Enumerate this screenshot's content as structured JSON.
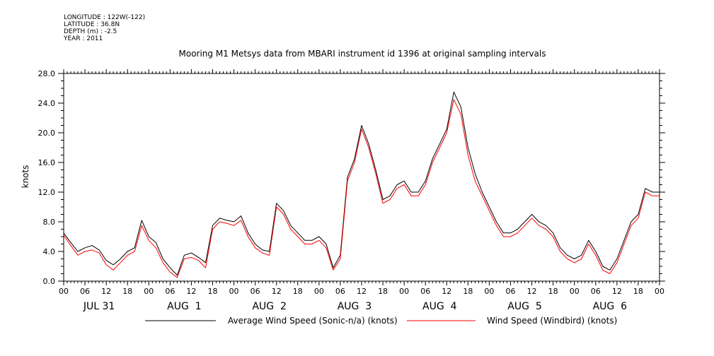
{
  "meta": {
    "longitude": "LONGITUDE : 122W(-122)",
    "latitude": "LATITUDE : 36.8N",
    "depth": "DEPTH (m) : -2.5",
    "year": "YEAR : 2011"
  },
  "chart_data": {
    "type": "line",
    "title": "Mooring M1 Metsys data from MBARI instrument id 1396 at original sampling intervals",
    "ylabel": "knots",
    "xlabel": "",
    "ylim": [
      0,
      28
    ],
    "yticks": [
      "0.0",
      "4.0",
      "8.0",
      "12.0",
      "16.0",
      "20.0",
      "24.0",
      "28.0"
    ],
    "xlim_hours": [
      0,
      168
    ],
    "hour_ticks": [
      "00",
      "06",
      "12",
      "18",
      "00",
      "06",
      "12",
      "18",
      "00",
      "06",
      "12",
      "18",
      "00",
      "06",
      "12",
      "18",
      "00",
      "06",
      "12",
      "18",
      "00",
      "06",
      "12",
      "18",
      "00",
      "06",
      "12",
      "18",
      "00"
    ],
    "day_labels": [
      "JUL 31",
      "AUG  1",
      "AUG  2",
      "AUG  3",
      "AUG  4",
      "AUG  5",
      "AUG  6"
    ],
    "grid": false,
    "legend_position": "bottom",
    "series": [
      {
        "name": "Average Wind Speed (Sonic-n/a) (knots)",
        "color": "#000000",
        "x": [
          0,
          2,
          4,
          6,
          8,
          10,
          12,
          14,
          16,
          18,
          20,
          22,
          24,
          26,
          28,
          30,
          32,
          34,
          36,
          38,
          40,
          42,
          44,
          46,
          48,
          50,
          52,
          54,
          56,
          58,
          60,
          62,
          64,
          66,
          68,
          70,
          72,
          74,
          76,
          78,
          80,
          82,
          84,
          86,
          88,
          90,
          92,
          94,
          96,
          98,
          100,
          102,
          104,
          106,
          108,
          110,
          112,
          114,
          116,
          118,
          120,
          122,
          124,
          126,
          128,
          130,
          132,
          134,
          136,
          138,
          140,
          142,
          144,
          146,
          148,
          150,
          152,
          154,
          156,
          158,
          160,
          162,
          164,
          166,
          168
        ],
        "y": [
          6.5,
          5.2,
          4.0,
          4.5,
          4.8,
          4.2,
          2.8,
          2.2,
          3.0,
          4.0,
          4.5,
          8.2,
          6.0,
          5.2,
          3.0,
          1.8,
          0.8,
          3.5,
          3.8,
          3.2,
          2.5,
          7.5,
          8.5,
          8.2,
          8.0,
          8.8,
          6.5,
          5.0,
          4.2,
          4.0,
          10.5,
          9.5,
          7.5,
          6.5,
          5.5,
          5.5,
          6.0,
          5.0,
          1.8,
          3.5,
          14.0,
          16.5,
          21.0,
          18.5,
          15.0,
          11.0,
          11.5,
          13.0,
          13.5,
          12.0,
          12.0,
          13.5,
          16.5,
          18.5,
          20.5,
          25.5,
          23.5,
          18.0,
          14.5,
          12.0,
          10.0,
          8.0,
          6.5,
          6.5,
          7.0,
          8.0,
          9.0,
          8.0,
          7.5,
          6.5,
          4.5,
          3.5,
          3.0,
          3.5,
          5.5,
          4.0,
          2.0,
          1.5,
          3.0,
          5.5,
          8.0,
          9.0,
          12.5,
          12.0,
          12.0
        ]
      },
      {
        "name": "Wind Speed (Windbird) (knots)",
        "color": "#ff0000",
        "x": [
          0,
          2,
          4,
          6,
          8,
          10,
          12,
          14,
          16,
          18,
          20,
          22,
          24,
          26,
          28,
          30,
          32,
          34,
          36,
          38,
          40,
          42,
          44,
          46,
          48,
          50,
          52,
          54,
          56,
          58,
          60,
          62,
          64,
          66,
          68,
          70,
          72,
          74,
          76,
          78,
          80,
          82,
          84,
          86,
          88,
          90,
          92,
          94,
          96,
          98,
          100,
          102,
          104,
          106,
          108,
          110,
          112,
          114,
          116,
          118,
          120,
          122,
          124,
          126,
          128,
          130,
          132,
          134,
          136,
          138,
          140,
          142,
          144,
          146,
          148,
          150,
          152,
          154,
          156,
          158,
          160,
          162,
          164,
          166,
          168
        ],
        "y": [
          6.2,
          4.8,
          3.5,
          4.0,
          4.2,
          3.8,
          2.2,
          1.5,
          2.5,
          3.5,
          4.0,
          7.5,
          5.5,
          4.5,
          2.5,
          1.2,
          0.5,
          3.0,
          3.2,
          2.8,
          1.8,
          7.0,
          8.0,
          7.8,
          7.5,
          8.2,
          6.0,
          4.5,
          3.8,
          3.5,
          10.0,
          9.0,
          7.0,
          6.0,
          5.0,
          5.0,
          5.5,
          4.5,
          1.5,
          3.0,
          13.5,
          16.0,
          20.5,
          18.0,
          14.5,
          10.5,
          11.0,
          12.5,
          13.0,
          11.5,
          11.5,
          13.0,
          16.0,
          18.0,
          20.0,
          24.5,
          22.5,
          17.0,
          13.5,
          11.5,
          9.5,
          7.5,
          6.0,
          6.0,
          6.5,
          7.5,
          8.5,
          7.5,
          7.0,
          6.0,
          4.0,
          3.0,
          2.5,
          3.0,
          5.0,
          3.5,
          1.5,
          1.0,
          2.5,
          5.0,
          7.5,
          8.5,
          12.0,
          11.5,
          11.5
        ]
      }
    ]
  }
}
